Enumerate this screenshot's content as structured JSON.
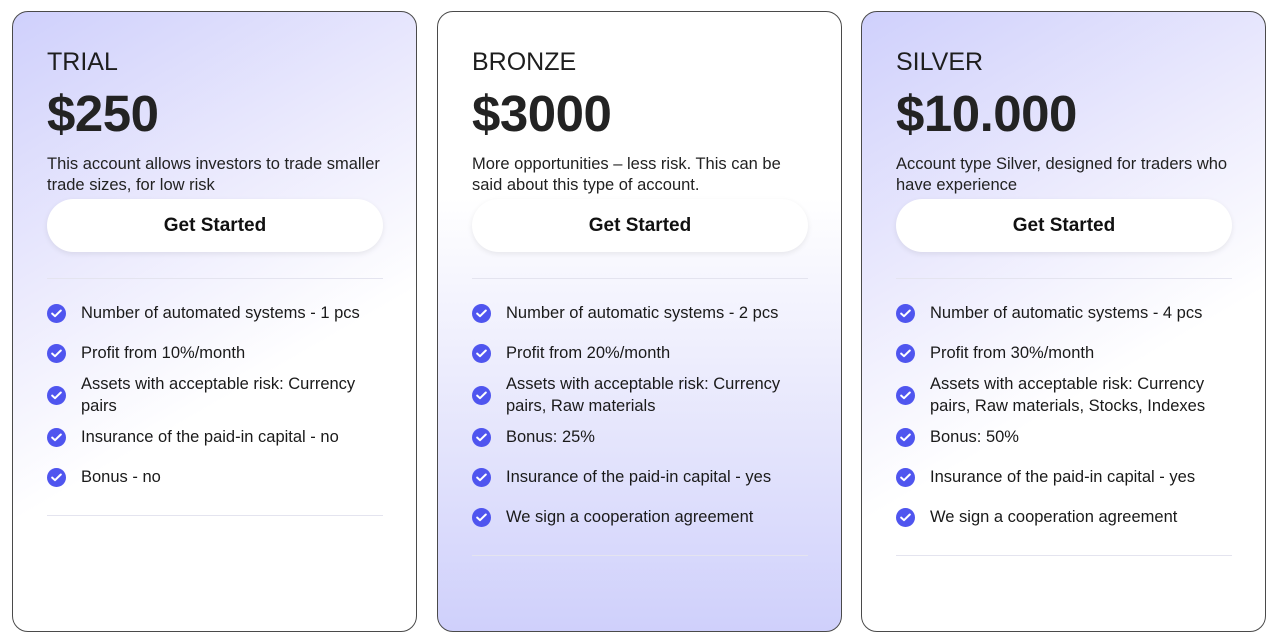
{
  "colors": {
    "accent": "#4f55ef",
    "card_gradient": "#cfd0fb"
  },
  "plans": [
    {
      "name": "TRIAL",
      "price": "$250",
      "description": "This account allows investors to trade smaller trade sizes, for low risk",
      "button": "Get Started",
      "features": [
        "Number of automated systems - 1 pcs",
        "Profit from 10%/month",
        "Assets with acceptable risk: Currency pairs",
        "Insurance of the paid-in capital - no",
        "Bonus - no"
      ]
    },
    {
      "name": "BRONZE",
      "price": "$3000",
      "description": "More opportunities – less risk. This can be said about this type of account.",
      "button": "Get Started",
      "features": [
        "Number of automatic systems - 2 pcs",
        "Profit from 20%/month",
        "Assets with acceptable risk: Currency pairs, Raw materials",
        "Bonus: 25%",
        "Insurance of the paid-in capital - yes",
        "We sign a cooperation agreement"
      ]
    },
    {
      "name": "SILVER",
      "price": "$10.000",
      "description": "Account type Silver, designed for traders who have experience",
      "button": "Get Started",
      "features": [
        "Number of automatic systems - 4 pcs",
        "Profit from 30%/month",
        "Assets with acceptable risk: Currency pairs, Raw materials, Stocks, Indexes",
        "Bonus: 50%",
        "Insurance of the paid-in capital - yes",
        "We sign a cooperation agreement"
      ]
    }
  ]
}
